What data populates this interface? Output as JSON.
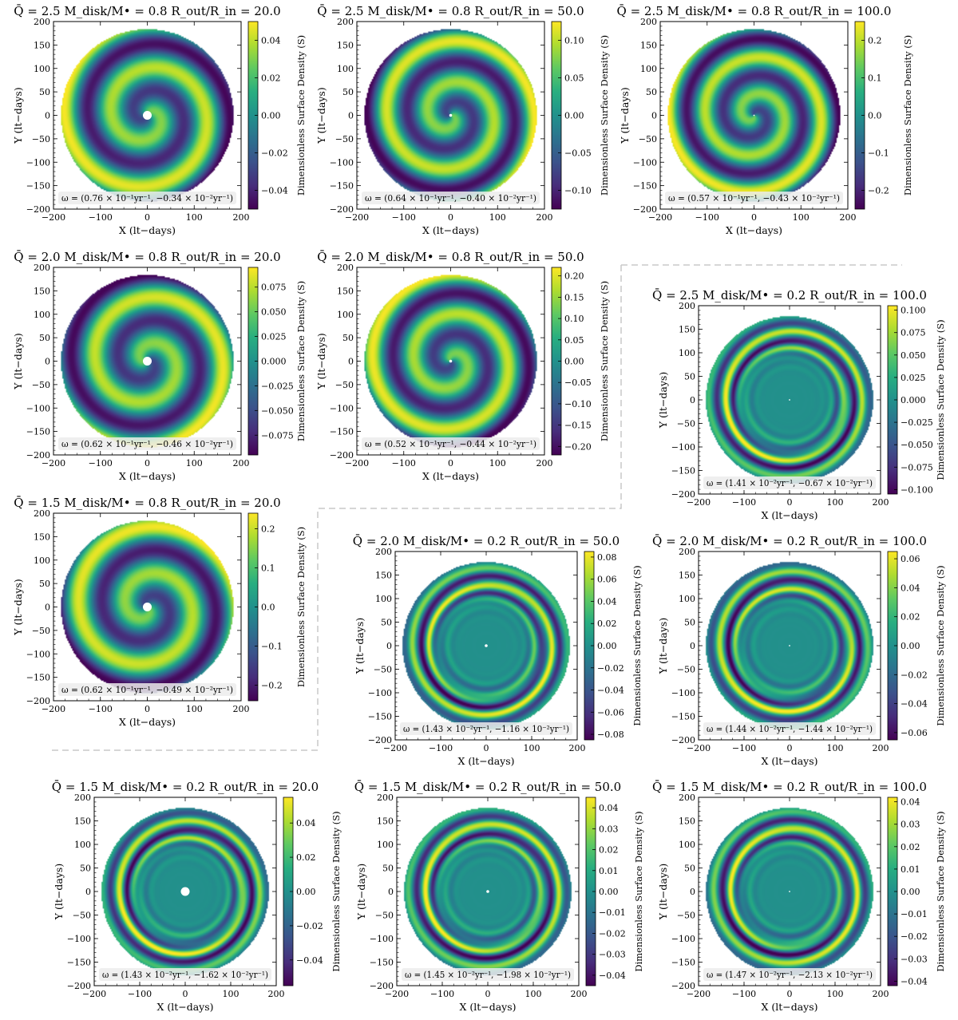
{
  "chart_data": [
    {
      "type": "heatmap",
      "title": "Q̄ = 2.5   M_disk/M• = 0.8   R_out/R_in = 20.0",
      "xlabel": "X (lt−days)",
      "ylabel": "Y (lt−days)",
      "colorbar_label": "Dimensionless Surface Density (S)",
      "xlim": [
        -200,
        200
      ],
      "ylim": [
        -200,
        200
      ],
      "xticks": [
        "−200",
        "−100",
        "0",
        "100",
        "200"
      ],
      "yticks": [
        "200",
        "150",
        "100",
        "50",
        "0",
        "−50",
        "−100",
        "−150",
        "−200"
      ],
      "colorbar_ticks": [
        "0.04",
        "0.02",
        "0.00",
        "−0.02",
        "−0.04"
      ],
      "omega_label": "ω = (0.76 × 10⁻¹yr⁻¹, −0.34 × 10⁻²yr⁻¹)",
      "pattern": "spiral",
      "arms": 1,
      "vmax": 0.05
    },
    {
      "type": "heatmap",
      "title": "Q̄ = 2.5   M_disk/M• = 0.8   R_out/R_in = 50.0",
      "xlabel": "X (lt−days)",
      "ylabel": "Y (lt−days)",
      "colorbar_label": "Dimensionless Surface Density (S)",
      "xlim": [
        -200,
        200
      ],
      "ylim": [
        -200,
        200
      ],
      "xticks": [
        "−200",
        "−100",
        "0",
        "100",
        "200"
      ],
      "yticks": [
        "200",
        "150",
        "100",
        "50",
        "0",
        "−50",
        "−100",
        "−150",
        "−200"
      ],
      "colorbar_ticks": [
        "0.10",
        "0.05",
        "0.00",
        "−0.05",
        "−0.10"
      ],
      "omega_label": "ω = (0.64 × 10⁻¹yr⁻¹, −0.40 × 10⁻²yr⁻¹)",
      "pattern": "spiral",
      "arms": 1,
      "vmax": 0.125
    },
    {
      "type": "heatmap",
      "title": "Q̄ = 2.5   M_disk/M• = 0.8   R_out/R_in = 100.0",
      "xlabel": "X (lt−days)",
      "ylabel": "Y (lt−days)",
      "colorbar_label": "Dimensionless Surface Density (S)",
      "xlim": [
        -200,
        200
      ],
      "ylim": [
        -200,
        200
      ],
      "xticks": [
        "−200",
        "−100",
        "0",
        "100",
        "200"
      ],
      "yticks": [
        "200",
        "150",
        "100",
        "50",
        "0",
        "−50",
        "−100",
        "−150",
        "−200"
      ],
      "colorbar_ticks": [
        "0.2",
        "0.1",
        "0.0",
        "−0.1",
        "−0.2"
      ],
      "omega_label": "ω = (0.57 × 10⁻¹yr⁻¹, −0.43 × 10⁻²yr⁻¹)",
      "pattern": "spiral",
      "arms": 1,
      "vmax": 0.25
    },
    {
      "type": "heatmap",
      "title": "Q̄ = 2.0   M_disk/M• = 0.8   R_out/R_in = 20.0",
      "xlabel": "X (lt−days)",
      "ylabel": "Y (lt−days)",
      "colorbar_label": "Dimensionless Surface Density (S)",
      "xlim": [
        -200,
        200
      ],
      "ylim": [
        -200,
        200
      ],
      "xticks": [
        "−200",
        "−100",
        "0",
        "100",
        "200"
      ],
      "yticks": [
        "200",
        "150",
        "100",
        "50",
        "0",
        "−50",
        "−100",
        "−150",
        "−200"
      ],
      "colorbar_ticks": [
        "0.075",
        "0.050",
        "0.025",
        "0.000",
        "−0.025",
        "−0.050",
        "−0.075"
      ],
      "omega_label": "ω = (0.62 × 10⁻¹yr⁻¹, −0.46 × 10⁻²yr⁻¹)",
      "pattern": "spiral",
      "arms": 1,
      "vmax": 0.095
    },
    {
      "type": "heatmap",
      "title": "Q̄ = 2.0   M_disk/M• = 0.8   R_out/R_in = 50.0",
      "xlabel": "X (lt−days)",
      "ylabel": "Y (lt−days)",
      "colorbar_label": "Dimensionless Surface Density (S)",
      "xlim": [
        -200,
        200
      ],
      "ylim": [
        -200,
        200
      ],
      "xticks": [
        "−200",
        "−100",
        "0",
        "100",
        "200"
      ],
      "yticks": [
        "200",
        "150",
        "100",
        "50",
        "0",
        "−50",
        "−100",
        "−150",
        "−200"
      ],
      "colorbar_ticks": [
        "0.20",
        "0.15",
        "0.10",
        "0.05",
        "0.00",
        "−0.05",
        "−0.10",
        "−0.15",
        "−0.20"
      ],
      "omega_label": "ω = (0.52 × 10⁻¹yr⁻¹, −0.44 × 10⁻²yr⁻¹)",
      "pattern": "spiral",
      "arms": 1,
      "vmax": 0.22
    },
    {
      "type": "heatmap",
      "title": "Q̄ = 2.5   M_disk/M• = 0.2   R_out/R_in = 100.0",
      "xlabel": "X (lt−days)",
      "ylabel": "Y (lt−days)",
      "colorbar_label": "Dimensionless Surface Density (S)",
      "xlim": [
        -200,
        200
      ],
      "ylim": [
        -200,
        200
      ],
      "xticks": [
        "−200",
        "−100",
        "0",
        "100",
        "200"
      ],
      "yticks": [
        "200",
        "150",
        "100",
        "50",
        "0",
        "−50",
        "−100",
        "−150",
        "−200"
      ],
      "colorbar_ticks": [
        "0.100",
        "0.075",
        "0.050",
        "0.025",
        "0.000",
        "−0.025",
        "−0.050",
        "−0.075",
        "−0.100"
      ],
      "omega_label": "ω = (1.41 × 10⁻²yr⁻¹, −0.67 × 10⁻²yr⁻¹)",
      "pattern": "ring",
      "arms": 1,
      "vmax": 0.105
    },
    {
      "type": "heatmap",
      "title": "Q̄ = 1.5   M_disk/M• = 0.8   R_out/R_in = 20.0",
      "xlabel": "X (lt−days)",
      "ylabel": "Y (lt−days)",
      "colorbar_label": "Dimensionless Surface Density (S)",
      "xlim": [
        -200,
        200
      ],
      "ylim": [
        -200,
        200
      ],
      "xticks": [
        "−200",
        "−100",
        "0",
        "100",
        "200"
      ],
      "yticks": [
        "200",
        "150",
        "100",
        "50",
        "0",
        "−50",
        "−100",
        "−150",
        "−200"
      ],
      "colorbar_ticks": [
        "0.2",
        "0.1",
        "0.0",
        "−0.1",
        "−0.2"
      ],
      "omega_label": "ω = (0.62 × 10⁻¹yr⁻¹, −0.49 × 10⁻²yr⁻¹)",
      "pattern": "spiral",
      "arms": 1,
      "vmax": 0.24
    },
    {
      "type": "heatmap",
      "title": "Q̄ = 2.0   M_disk/M• = 0.2   R_out/R_in = 50.0",
      "xlabel": "X (lt−days)",
      "ylabel": "Y (lt−days)",
      "colorbar_label": "Dimensionless Surface Density (S)",
      "xlim": [
        -200,
        200
      ],
      "ylim": [
        -200,
        200
      ],
      "xticks": [
        "−200",
        "−100",
        "0",
        "100",
        "200"
      ],
      "yticks": [
        "200",
        "150",
        "100",
        "50",
        "0",
        "−50",
        "−100",
        "−150",
        "−200"
      ],
      "colorbar_ticks": [
        "0.08",
        "0.06",
        "0.04",
        "0.02",
        "0.00",
        "−0.02",
        "−0.04",
        "−0.06",
        "−0.08"
      ],
      "omega_label": "ω = (1.43 × 10⁻²yr⁻¹, −1.16 × 10⁻²yr⁻¹)",
      "pattern": "ring",
      "arms": 1,
      "vmax": 0.085
    },
    {
      "type": "heatmap",
      "title": "Q̄ = 2.0   M_disk/M• = 0.2   R_out/R_in = 100.0",
      "xlabel": "X (lt−days)",
      "ylabel": "Y (lt−days)",
      "colorbar_label": "Dimensionless Surface Density (S)",
      "xlim": [
        -200,
        200
      ],
      "ylim": [
        -200,
        200
      ],
      "xticks": [
        "−200",
        "−100",
        "0",
        "100",
        "200"
      ],
      "yticks": [
        "200",
        "150",
        "100",
        "50",
        "0",
        "−50",
        "−100",
        "−150",
        "−200"
      ],
      "colorbar_ticks": [
        "0.06",
        "0.04",
        "0.02",
        "0.00",
        "−0.02",
        "−0.04",
        "−0.06"
      ],
      "omega_label": "ω = (1.44 × 10⁻²yr⁻¹, −1.44 × 10⁻²yr⁻¹)",
      "pattern": "ring",
      "arms": 1,
      "vmax": 0.065
    },
    {
      "type": "heatmap",
      "title": "Q̄ = 1.5   M_disk/M• = 0.2   R_out/R_in = 20.0",
      "xlabel": "X (lt−days)",
      "ylabel": "Y (lt−days)",
      "colorbar_label": "Dimensionless Surface Density (S)",
      "xlim": [
        -200,
        200
      ],
      "ylim": [
        -200,
        200
      ],
      "xticks": [
        "−200",
        "−100",
        "0",
        "100",
        "200"
      ],
      "yticks": [
        "200",
        "150",
        "100",
        "50",
        "0",
        "−50",
        "−100",
        "−150",
        "−200"
      ],
      "colorbar_ticks": [
        "0.04",
        "0.02",
        "0.00",
        "−0.02",
        "−0.04"
      ],
      "omega_label": "ω = (1.43 × 10⁻²yr⁻¹, −1.62 × 10⁻²yr⁻¹)",
      "pattern": "ring",
      "arms": 1,
      "vmax": 0.055
    },
    {
      "type": "heatmap",
      "title": "Q̄ = 1.5   M_disk/M• = 0.2   R_out/R_in = 50.0",
      "xlabel": "X (lt−days)",
      "ylabel": "Y (lt−days)",
      "colorbar_label": "Dimensionless Surface Density (S)",
      "xlim": [
        -200,
        200
      ],
      "ylim": [
        -200,
        200
      ],
      "xticks": [
        "−200",
        "−100",
        "0",
        "100",
        "200"
      ],
      "yticks": [
        "200",
        "150",
        "100",
        "50",
        "0",
        "−50",
        "−100",
        "−150",
        "−200"
      ],
      "colorbar_ticks": [
        "0.04",
        "0.03",
        "0.02",
        "0.01",
        "0.00",
        "−0.01",
        "−0.02",
        "−0.03",
        "−0.04"
      ],
      "omega_label": "ω = (1.45 × 10⁻²yr⁻¹, −1.98 × 10⁻²yr⁻¹)",
      "pattern": "ring",
      "arms": 1,
      "vmax": 0.045
    },
    {
      "type": "heatmap",
      "title": "Q̄ = 1.5   M_disk/M• = 0.2   R_out/R_in = 100.0",
      "xlabel": "X (lt−days)",
      "ylabel": "Y (lt−days)",
      "colorbar_label": "Dimensionless Surface Density (S)",
      "xlim": [
        -200,
        200
      ],
      "ylim": [
        -200,
        200
      ],
      "xticks": [
        "−200",
        "−100",
        "0",
        "100",
        "200"
      ],
      "yticks": [
        "200",
        "150",
        "100",
        "50",
        "0",
        "−50",
        "−100",
        "−150",
        "−200"
      ],
      "colorbar_ticks": [
        "0.04",
        "0.03",
        "0.02",
        "0.01",
        "0.00",
        "−0.01",
        "−0.02",
        "−0.03",
        "−0.04"
      ],
      "omega_label": "ω = (1.47 × 10⁻²yr⁻¹, −2.13 × 10⁻²yr⁻¹)",
      "pattern": "ring",
      "arms": 1,
      "vmax": 0.042
    }
  ]
}
